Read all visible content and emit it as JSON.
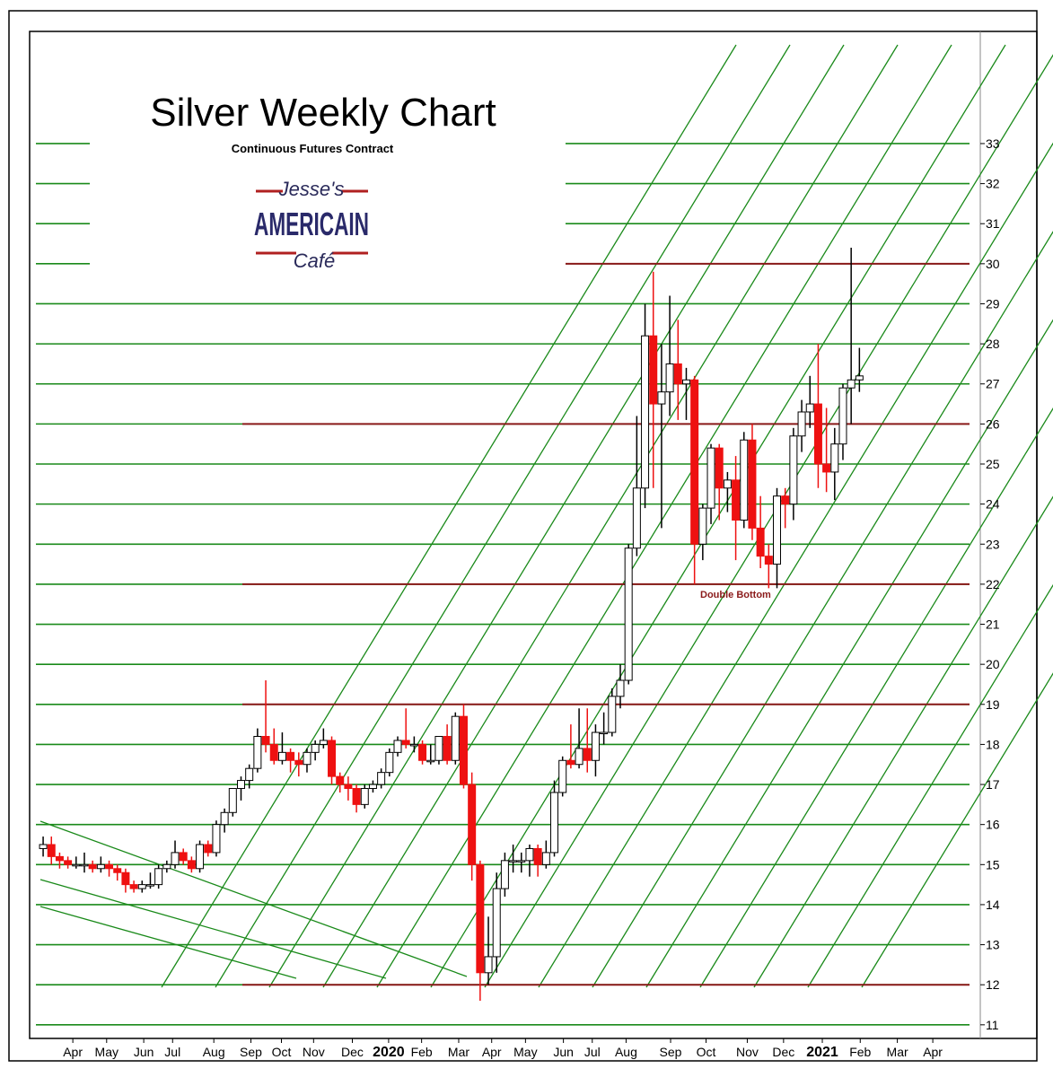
{
  "chart_data": {
    "type": "candlestick",
    "title": "Silver Weekly Chart",
    "subtitle": "Continuous Futures Contract",
    "logo": {
      "top": "Jesse's",
      "middle": "AMERICAIN",
      "bottom": "Café"
    },
    "annotation": "Double Bottom",
    "ylim": [
      10.66,
      35.8
    ],
    "yticks": [
      11,
      12,
      13,
      14,
      15,
      16,
      17,
      18,
      19,
      20,
      21,
      22,
      23,
      24,
      25,
      26,
      27,
      28,
      29,
      30,
      31,
      32,
      33
    ],
    "xlim": [
      -1.64,
      113.66
    ],
    "xticks": [
      {
        "value": 3.6,
        "label": "Apr"
      },
      {
        "value": 7.7,
        "label": "May"
      },
      {
        "value": 12.2,
        "label": "Jun"
      },
      {
        "value": 15.7,
        "label": "Jul"
      },
      {
        "value": 20.7,
        "label": "Aug"
      },
      {
        "value": 25.2,
        "label": "Sep"
      },
      {
        "value": 28.9,
        "label": "Oct"
      },
      {
        "value": 32.8,
        "label": "Nov"
      },
      {
        "value": 37.5,
        "label": "Dec"
      },
      {
        "value": 41.9,
        "label": "2020"
      },
      {
        "value": 45.9,
        "label": "Feb"
      },
      {
        "value": 50.4,
        "label": "Mar"
      },
      {
        "value": 54.4,
        "label": "Apr"
      },
      {
        "value": 58.5,
        "label": "May"
      },
      {
        "value": 63.1,
        "label": "Jun"
      },
      {
        "value": 66.6,
        "label": "Jul"
      },
      {
        "value": 70.7,
        "label": "Aug"
      },
      {
        "value": 76.1,
        "label": "Sep"
      },
      {
        "value": 80.4,
        "label": "Oct"
      },
      {
        "value": 85.4,
        "label": "Nov"
      },
      {
        "value": 89.8,
        "label": "Dec"
      },
      {
        "value": 94.5,
        "label": "2021"
      },
      {
        "value": 99.1,
        "label": "Feb"
      },
      {
        "value": 103.6,
        "label": "Mar"
      },
      {
        "value": 107.9,
        "label": "Apr"
      }
    ],
    "grid": true,
    "grid_color": "#1a8a1a",
    "up_color": "#ffffff",
    "down_color": "#ee1111",
    "level_lines": [
      30,
      26,
      22,
      19,
      12
    ],
    "level_color": "#8b1a1a",
    "ohlc": [
      [
        15.4,
        15.7,
        15.2,
        15.5
      ],
      [
        15.5,
        15.7,
        15.0,
        15.2
      ],
      [
        15.2,
        15.3,
        14.9,
        15.1
      ],
      [
        15.1,
        15.2,
        14.9,
        15.0
      ],
      [
        15.0,
        15.2,
        14.9,
        15.0
      ],
      [
        15.0,
        15.3,
        14.8,
        15.0
      ],
      [
        15.0,
        15.1,
        14.8,
        14.9
      ],
      [
        14.9,
        15.2,
        14.8,
        15.0
      ],
      [
        15.0,
        15.1,
        14.7,
        14.9
      ],
      [
        14.9,
        15.0,
        14.6,
        14.8
      ],
      [
        14.8,
        14.9,
        14.3,
        14.5
      ],
      [
        14.5,
        14.6,
        14.3,
        14.4
      ],
      [
        14.4,
        14.6,
        14.3,
        14.5
      ],
      [
        14.5,
        14.8,
        14.4,
        14.5
      ],
      [
        14.5,
        15.0,
        14.4,
        14.9
      ],
      [
        14.9,
        15.1,
        14.8,
        15.0
      ],
      [
        15.0,
        15.6,
        14.9,
        15.3
      ],
      [
        15.3,
        15.4,
        15.0,
        15.1
      ],
      [
        15.1,
        15.2,
        14.8,
        14.9
      ],
      [
        14.9,
        15.6,
        14.8,
        15.5
      ],
      [
        15.5,
        15.6,
        15.2,
        15.3
      ],
      [
        15.3,
        16.1,
        15.2,
        16.0
      ],
      [
        16.0,
        16.4,
        15.8,
        16.3
      ],
      [
        16.3,
        16.9,
        16.2,
        16.9
      ],
      [
        16.9,
        17.2,
        16.6,
        17.1
      ],
      [
        17.1,
        17.5,
        16.9,
        17.4
      ],
      [
        17.4,
        18.4,
        17.3,
        18.2
      ],
      [
        18.2,
        19.6,
        17.8,
        18.0
      ],
      [
        18.0,
        18.4,
        17.5,
        17.6
      ],
      [
        17.6,
        18.3,
        17.5,
        17.8
      ],
      [
        17.8,
        17.9,
        17.3,
        17.6
      ],
      [
        17.6,
        17.8,
        17.2,
        17.5
      ],
      [
        17.5,
        17.9,
        17.3,
        17.8
      ],
      [
        17.8,
        18.1,
        17.6,
        18.0
      ],
      [
        18.0,
        18.4,
        17.9,
        18.1
      ],
      [
        18.1,
        18.2,
        17.0,
        17.2
      ],
      [
        17.2,
        17.3,
        16.8,
        17.0
      ],
      [
        17.0,
        17.2,
        16.6,
        16.9
      ],
      [
        16.9,
        17.0,
        16.3,
        16.5
      ],
      [
        16.5,
        17.0,
        16.4,
        16.9
      ],
      [
        16.9,
        17.1,
        16.8,
        17.0
      ],
      [
        17.0,
        17.4,
        16.9,
        17.3
      ],
      [
        17.3,
        17.9,
        17.2,
        17.8
      ],
      [
        17.8,
        18.2,
        17.7,
        18.1
      ],
      [
        18.1,
        18.9,
        17.9,
        18.0
      ],
      [
        18.0,
        18.2,
        17.8,
        18.0
      ],
      [
        18.0,
        18.1,
        17.5,
        17.6
      ],
      [
        17.6,
        18.0,
        17.5,
        17.6
      ],
      [
        17.6,
        18.2,
        17.5,
        18.2
      ],
      [
        18.2,
        18.5,
        17.5,
        17.6
      ],
      [
        17.6,
        18.8,
        17.5,
        18.7
      ],
      [
        18.7,
        19.0,
        16.9,
        17.0
      ],
      [
        17.0,
        17.3,
        14.6,
        15.0
      ],
      [
        15.0,
        15.1,
        11.6,
        12.3
      ],
      [
        12.3,
        13.7,
        12.0,
        12.7
      ],
      [
        12.7,
        14.8,
        12.3,
        14.4
      ],
      [
        14.4,
        15.3,
        14.2,
        15.1
      ],
      [
        15.1,
        15.5,
        14.8,
        15.1
      ],
      [
        15.1,
        15.3,
        14.8,
        15.1
      ],
      [
        15.1,
        15.5,
        14.7,
        15.4
      ],
      [
        15.4,
        15.5,
        14.7,
        15.0
      ],
      [
        15.0,
        15.6,
        14.9,
        15.3
      ],
      [
        15.3,
        17.1,
        15.2,
        16.8
      ],
      [
        16.8,
        17.7,
        16.7,
        17.6
      ],
      [
        17.6,
        18.5,
        17.4,
        17.5
      ],
      [
        17.5,
        18.9,
        17.4,
        17.9
      ],
      [
        17.9,
        18.9,
        17.3,
        17.6
      ],
      [
        17.6,
        18.5,
        17.2,
        18.3
      ],
      [
        18.3,
        18.8,
        18.0,
        18.3
      ],
      [
        18.3,
        19.4,
        18.2,
        19.2
      ],
      [
        19.2,
        20.0,
        18.9,
        19.6
      ],
      [
        19.6,
        23.0,
        19.5,
        22.9
      ],
      [
        22.9,
        26.2,
        22.7,
        24.4
      ],
      [
        24.4,
        29.0,
        23.9,
        28.2
      ],
      [
        28.2,
        29.8,
        24.4,
        26.5
      ],
      [
        26.5,
        28.0,
        23.4,
        26.8
      ],
      [
        26.8,
        29.2,
        26.2,
        27.5
      ],
      [
        27.5,
        28.6,
        26.1,
        27.0
      ],
      [
        27.0,
        27.4,
        26.1,
        27.1
      ],
      [
        27.1,
        27.2,
        22.0,
        23.0
      ],
      [
        23.0,
        24.0,
        22.6,
        23.9
      ],
      [
        23.9,
        25.5,
        23.5,
        25.4
      ],
      [
        25.4,
        25.5,
        23.6,
        24.4
      ],
      [
        24.4,
        24.8,
        23.8,
        24.6
      ],
      [
        24.6,
        25.2,
        22.6,
        23.6
      ],
      [
        23.6,
        25.8,
        23.4,
        25.6
      ],
      [
        25.6,
        26.0,
        23.1,
        23.4
      ],
      [
        23.4,
        24.2,
        22.4,
        22.7
      ],
      [
        22.7,
        23.0,
        21.9,
        22.5
      ],
      [
        22.5,
        24.4,
        21.9,
        24.2
      ],
      [
        24.2,
        24.4,
        23.4,
        24.0
      ],
      [
        24.0,
        25.9,
        23.6,
        25.7
      ],
      [
        25.7,
        26.6,
        25.3,
        26.3
      ],
      [
        26.3,
        27.2,
        25.9,
        26.5
      ],
      [
        26.5,
        28.0,
        24.4,
        25.0
      ],
      [
        25.0,
        26.4,
        24.3,
        24.8
      ],
      [
        24.8,
        25.9,
        24.1,
        25.5
      ],
      [
        25.5,
        27.0,
        25.1,
        26.9
      ],
      [
        26.9,
        30.4,
        26.0,
        27.1
      ],
      [
        27.1,
        27.9,
        26.8,
        27.2
      ]
    ]
  }
}
